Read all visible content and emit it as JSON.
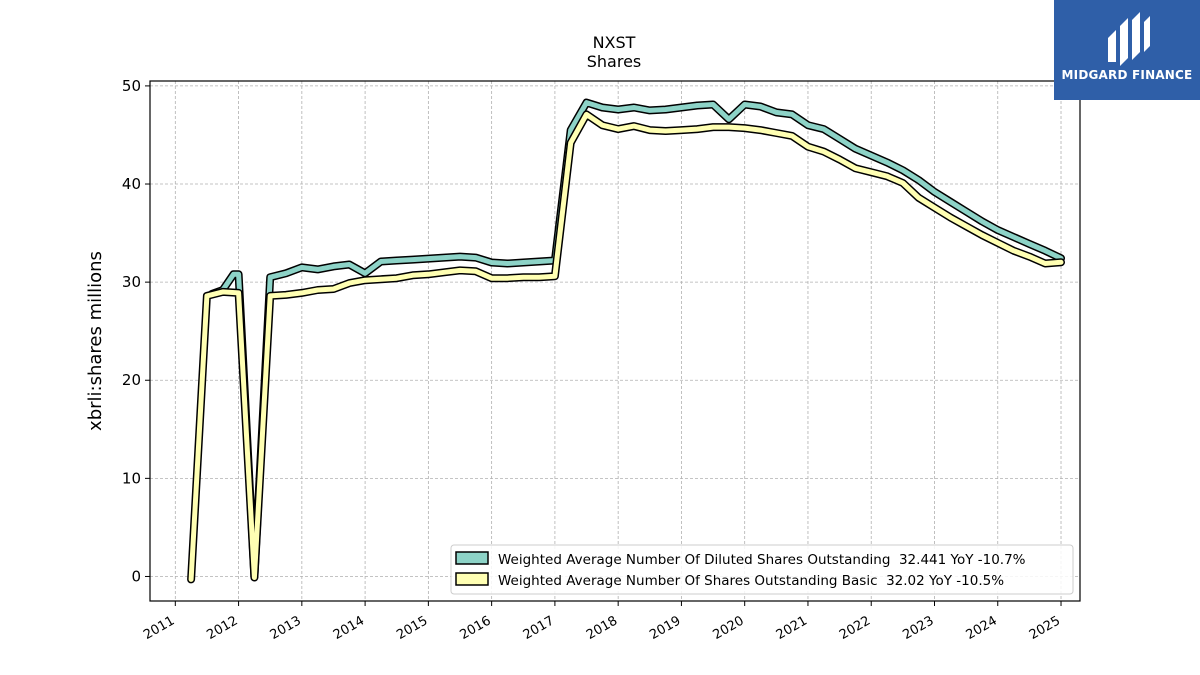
{
  "chart_data": {
    "type": "line",
    "title": "NXST",
    "subtitle": "Shares",
    "ylabel": "xbrli:shares millions",
    "ylim": [
      -2.5,
      50.5
    ],
    "xlim": [
      2010.6,
      2025.3
    ],
    "yticks": [
      0,
      10,
      20,
      30,
      40,
      50
    ],
    "xticks": [
      "2011",
      "2012",
      "2013",
      "2014",
      "2015",
      "2016",
      "2017",
      "2018",
      "2019",
      "2020",
      "2021",
      "2022",
      "2023",
      "2024",
      "2025"
    ],
    "grid": true,
    "legend_position": "lower-right",
    "series": [
      {
        "name": "Weighted Average Number Of Diluted Shares Outstanding  32.441 YoY -10.7%",
        "color": "#8dd3c7",
        "points": [
          [
            2011.58,
            28.8
          ],
          [
            2011.75,
            29.2
          ],
          [
            2011.92,
            30.8
          ],
          [
            2012.0,
            30.8
          ],
          [
            2012.25,
            0.0
          ],
          [
            2012.5,
            30.5
          ],
          [
            2012.75,
            30.9
          ],
          [
            2013.0,
            31.5
          ],
          [
            2013.25,
            31.3
          ],
          [
            2013.5,
            31.6
          ],
          [
            2013.75,
            31.8
          ],
          [
            2014.0,
            30.9
          ],
          [
            2014.25,
            32.1
          ],
          [
            2014.5,
            32.2
          ],
          [
            2014.75,
            32.3
          ],
          [
            2015.0,
            32.4
          ],
          [
            2015.25,
            32.5
          ],
          [
            2015.5,
            32.6
          ],
          [
            2015.75,
            32.5
          ],
          [
            2016.0,
            32.0
          ],
          [
            2016.25,
            31.9
          ],
          [
            2016.5,
            32.0
          ],
          [
            2016.75,
            32.1
          ],
          [
            2017.0,
            32.2
          ],
          [
            2017.25,
            45.5
          ],
          [
            2017.5,
            48.3
          ],
          [
            2017.75,
            47.8
          ],
          [
            2018.0,
            47.6
          ],
          [
            2018.25,
            47.8
          ],
          [
            2018.5,
            47.5
          ],
          [
            2018.75,
            47.6
          ],
          [
            2019.0,
            47.8
          ],
          [
            2019.25,
            48.0
          ],
          [
            2019.5,
            48.1
          ],
          [
            2019.75,
            46.6
          ],
          [
            2020.0,
            48.1
          ],
          [
            2020.25,
            47.9
          ],
          [
            2020.5,
            47.3
          ],
          [
            2020.75,
            47.1
          ],
          [
            2021.0,
            46.0
          ],
          [
            2021.25,
            45.6
          ],
          [
            2021.5,
            44.6
          ],
          [
            2021.75,
            43.6
          ],
          [
            2022.0,
            42.9
          ],
          [
            2022.25,
            42.2
          ],
          [
            2022.5,
            41.4
          ],
          [
            2022.75,
            40.4
          ],
          [
            2023.0,
            39.2
          ],
          [
            2023.25,
            38.2
          ],
          [
            2023.5,
            37.2
          ],
          [
            2023.75,
            36.2
          ],
          [
            2024.0,
            35.3
          ],
          [
            2024.25,
            34.6
          ],
          [
            2024.5,
            33.9
          ],
          [
            2024.75,
            33.2
          ],
          [
            2025.0,
            32.44
          ]
        ]
      },
      {
        "name": "Weighted Average Number Of Shares Outstanding Basic  32.02 YoY -10.5%",
        "color": "#ffffb3",
        "points": [
          [
            2011.25,
            -0.3
          ],
          [
            2011.5,
            28.6
          ],
          [
            2011.75,
            29.0
          ],
          [
            2012.0,
            28.9
          ],
          [
            2012.25,
            -0.1
          ],
          [
            2012.5,
            28.6
          ],
          [
            2012.75,
            28.7
          ],
          [
            2013.0,
            28.9
          ],
          [
            2013.25,
            29.2
          ],
          [
            2013.5,
            29.3
          ],
          [
            2013.75,
            29.9
          ],
          [
            2014.0,
            30.2
          ],
          [
            2014.25,
            30.3
          ],
          [
            2014.5,
            30.4
          ],
          [
            2014.75,
            30.7
          ],
          [
            2015.0,
            30.8
          ],
          [
            2015.25,
            31.0
          ],
          [
            2015.5,
            31.2
          ],
          [
            2015.75,
            31.1
          ],
          [
            2016.0,
            30.4
          ],
          [
            2016.25,
            30.4
          ],
          [
            2016.5,
            30.5
          ],
          [
            2016.75,
            30.5
          ],
          [
            2017.0,
            30.6
          ],
          [
            2017.25,
            44.2
          ],
          [
            2017.5,
            47.1
          ],
          [
            2017.75,
            46.0
          ],
          [
            2018.0,
            45.6
          ],
          [
            2018.25,
            45.9
          ],
          [
            2018.5,
            45.5
          ],
          [
            2018.75,
            45.4
          ],
          [
            2019.0,
            45.5
          ],
          [
            2019.25,
            45.6
          ],
          [
            2019.5,
            45.8
          ],
          [
            2019.75,
            45.8
          ],
          [
            2020.0,
            45.7
          ],
          [
            2020.25,
            45.5
          ],
          [
            2020.5,
            45.2
          ],
          [
            2020.75,
            44.9
          ],
          [
            2021.0,
            43.8
          ],
          [
            2021.25,
            43.3
          ],
          [
            2021.5,
            42.5
          ],
          [
            2021.75,
            41.6
          ],
          [
            2022.0,
            41.2
          ],
          [
            2022.25,
            40.8
          ],
          [
            2022.5,
            40.1
          ],
          [
            2022.75,
            38.6
          ],
          [
            2023.0,
            37.6
          ],
          [
            2023.25,
            36.6
          ],
          [
            2023.5,
            35.7
          ],
          [
            2023.75,
            34.8
          ],
          [
            2024.0,
            34.0
          ],
          [
            2024.25,
            33.2
          ],
          [
            2024.5,
            32.6
          ],
          [
            2024.75,
            31.9
          ],
          [
            2025.0,
            32.02
          ]
        ]
      }
    ]
  },
  "logo": {
    "text": "MIDGARD FINANCE",
    "background": "#2f5fa8",
    "icon": "midgard-logo-icon"
  }
}
